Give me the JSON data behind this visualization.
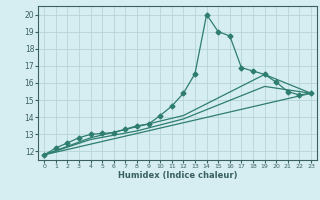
{
  "xlabel": "Humidex (Indice chaleur)",
  "ylabel": "",
  "background_color": "#d6eef2",
  "grid_color": "#b8d4d8",
  "line_color": "#2e7d6e",
  "spine_color": "#3a6060",
  "xlim": [
    -0.5,
    23.5
  ],
  "ylim": [
    11.5,
    20.5
  ],
  "xticks": [
    0,
    1,
    2,
    3,
    4,
    5,
    6,
    7,
    8,
    9,
    10,
    11,
    12,
    13,
    14,
    15,
    16,
    17,
    18,
    19,
    20,
    21,
    22,
    23
  ],
  "yticks": [
    12,
    13,
    14,
    15,
    16,
    17,
    18,
    19,
    20
  ],
  "series": [
    {
      "x": [
        0,
        1,
        2,
        3,
        4,
        5,
        6,
        7,
        8,
        9,
        10,
        11,
        12,
        13,
        14,
        15,
        16,
        17,
        18,
        19,
        20,
        21,
        22,
        23
      ],
      "y": [
        11.8,
        12.2,
        12.5,
        12.8,
        13.0,
        13.05,
        13.1,
        13.3,
        13.5,
        13.6,
        14.1,
        14.65,
        15.4,
        16.55,
        20.0,
        19.0,
        18.75,
        16.9,
        16.7,
        16.5,
        16.05,
        15.5,
        15.3,
        15.4
      ],
      "marker": "D",
      "markersize": 2.5
    },
    {
      "x": [
        0,
        4,
        8,
        12,
        19,
        23
      ],
      "y": [
        11.8,
        12.8,
        13.45,
        14.1,
        16.5,
        15.4
      ],
      "marker": null,
      "markersize": 0
    },
    {
      "x": [
        0,
        4,
        8,
        12,
        19,
        23
      ],
      "y": [
        11.8,
        12.7,
        13.2,
        13.9,
        15.8,
        15.4
      ],
      "marker": null,
      "markersize": 0
    },
    {
      "x": [
        0,
        23
      ],
      "y": [
        11.8,
        15.4
      ],
      "marker": null,
      "markersize": 0
    }
  ]
}
